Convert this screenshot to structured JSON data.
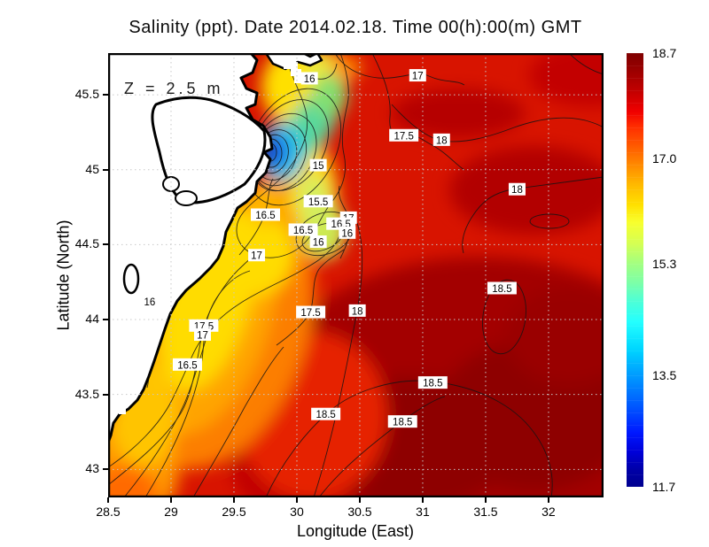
{
  "title": "Salinity (ppt). Date 2014.02.18. Time 00(h):00(m) GMT",
  "annotation": "Z = 2.5 m",
  "x_axis": {
    "label": "Longitude (East)",
    "ticks": [
      "28.5",
      "29",
      "29.5",
      "30",
      "30.5",
      "31",
      "31.5",
      "32"
    ]
  },
  "y_axis": {
    "label": "Latitude (North)",
    "ticks": [
      "45.5",
      "45",
      "44.5",
      "44",
      "43.5",
      "43"
    ]
  },
  "colorbar": {
    "labels": [
      "18.7",
      "17.0",
      "15.3",
      "13.5",
      "11.7"
    ],
    "min": 11.7,
    "max": 18.7,
    "colormap": "jet",
    "top_color": "#7f0000",
    "bottom_color": "#00008f"
  },
  "chart_data": {
    "type": "heatmap",
    "subtype": "filled-contour-map",
    "variable": "Salinity (ppt)",
    "date": "2014.02.18",
    "time": "00(h):00(m) GMT",
    "depth_label": "Z = 2.5 m",
    "title": "Salinity (ppt). Date 2014.02.18. Time 00(h):00(m) GMT",
    "xlabel": "Longitude (East)",
    "ylabel": "Latitude (North)",
    "xlim": [
      28.5,
      32.437
    ],
    "ylim": [
      42.813,
      45.778
    ],
    "x_ticks": [
      28.5,
      29,
      29.5,
      30,
      30.5,
      31,
      31.5,
      32
    ],
    "y_ticks": [
      43,
      43.5,
      44,
      44.5,
      45,
      45.5
    ],
    "grid": true,
    "legend_position": "right-colorbar",
    "colorbar_ticks": [
      18.7,
      17.0,
      15.3,
      13.5,
      11.7
    ],
    "value_range": [
      11.7,
      18.7
    ],
    "contour_interval": 0.5,
    "contour_labels": [
      {
        "value": "16",
        "lon": 30.1,
        "lat": 45.61
      },
      {
        "value": "17",
        "lon": 30.96,
        "lat": 45.63
      },
      {
        "value": "17.5",
        "lon": 30.85,
        "lat": 45.23
      },
      {
        "value": "18",
        "lon": 31.15,
        "lat": 45.2
      },
      {
        "value": "15",
        "lon": 30.17,
        "lat": 45.03
      },
      {
        "value": "15.5",
        "lon": 30.17,
        "lat": 44.79
      },
      {
        "value": "16.5",
        "lon": 29.75,
        "lat": 44.7
      },
      {
        "value": "17",
        "lon": 30.41,
        "lat": 44.68
      },
      {
        "value": "16.5",
        "lon": 30.35,
        "lat": 44.64
      },
      {
        "value": "16.5",
        "lon": 30.05,
        "lat": 44.6
      },
      {
        "value": "16",
        "lon": 30.4,
        "lat": 44.58
      },
      {
        "value": "16",
        "lon": 30.17,
        "lat": 44.52
      },
      {
        "value": "17",
        "lon": 29.68,
        "lat": 44.43
      },
      {
        "value": "16",
        "lon": 28.83,
        "lat": 44.12
      },
      {
        "value": "17.5",
        "lon": 30.11,
        "lat": 44.05
      },
      {
        "value": "18",
        "lon": 30.48,
        "lat": 44.06
      },
      {
        "value": "17.5",
        "lon": 29.26,
        "lat": 43.96
      },
      {
        "value": "17",
        "lon": 29.25,
        "lat": 43.9
      },
      {
        "value": "16.5",
        "lon": 29.13,
        "lat": 43.7
      },
      {
        "value": "18",
        "lon": 31.75,
        "lat": 44.87
      },
      {
        "value": "18.5",
        "lon": 31.63,
        "lat": 44.21
      },
      {
        "value": "18.5",
        "lon": 31.08,
        "lat": 43.58
      },
      {
        "value": "18.5",
        "lon": 30.23,
        "lat": 43.37
      },
      {
        "value": "18.5",
        "lon": 30.84,
        "lat": 43.32
      }
    ],
    "field_summary": {
      "low_salinity_plume": {
        "lon": 29.78,
        "lat": 45.11,
        "approx_min_ppt": 11.7
      },
      "open_sea_southeast_ppt": [
        18.0,
        18.7
      ],
      "coastal_band_west_ppt": [
        15.5,
        17.0
      ]
    }
  }
}
